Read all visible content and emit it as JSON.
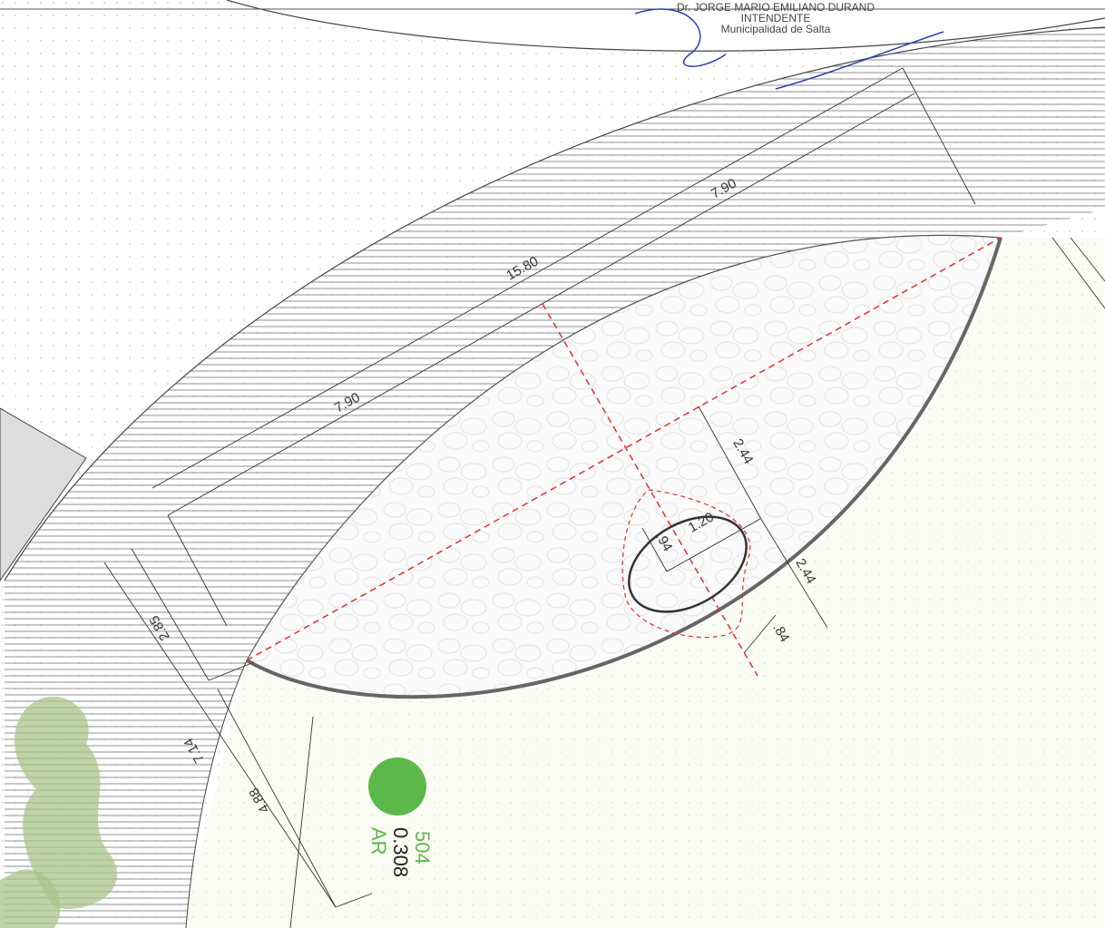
{
  "stamp": {
    "name": "Dr. JORGE MARIO EMILIANO DURAND",
    "title": "INTENDENTE",
    "institution": "Municipalidad de Salta"
  },
  "dimensions": [
    "7.90",
    "15.80",
    "7.90",
    "2.44",
    "1.20",
    ".94",
    "2.44",
    ".84",
    "2.85",
    "7.14",
    "4.88"
  ],
  "tree_label": {
    "number": "504",
    "value": "0.308",
    "code": "AR"
  }
}
